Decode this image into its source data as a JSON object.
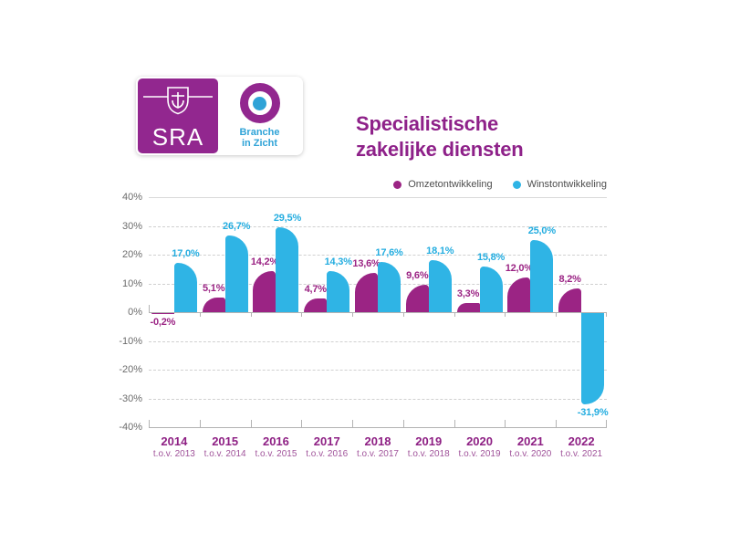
{
  "logo": {
    "sra_text": "SRA",
    "tagline_line1": "Branche",
    "tagline_line2": "in Zicht"
  },
  "title": {
    "line1": "Specialistische",
    "line2": "zakelijke diensten"
  },
  "legend": [
    {
      "label": "Omzetontwikkeling",
      "color": "#9B2484"
    },
    {
      "label": "Winstontwikkeling",
      "color": "#2FB4E5"
    }
  ],
  "colors": {
    "purple_bar": "#9B2484",
    "blue_bar": "#2FB4E5",
    "purple_label": "#9B2484",
    "blue_label": "#24ADE0"
  },
  "chart_data": {
    "type": "bar",
    "title": "Specialistische zakelijke diensten",
    "categories": [
      "2014",
      "2015",
      "2016",
      "2017",
      "2018",
      "2019",
      "2020",
      "2021",
      "2022"
    ],
    "subcategories": [
      "t.o.v. 2013",
      "t.o.v. 2014",
      "t.o.v. 2015",
      "t.o.v. 2016",
      "t.o.v. 2017",
      "t.o.v. 2018",
      "t.o.v. 2019",
      "t.o.v. 2020",
      "t.o.v. 2021"
    ],
    "series": [
      {
        "name": "Omzetontwikkeling",
        "color": "#9B2484",
        "values": [
          -0.2,
          5.1,
          14.2,
          4.7,
          13.6,
          9.6,
          3.3,
          12.0,
          8.2
        ],
        "labels": [
          "-0,2%",
          "5,1%",
          "14,2%",
          "4,7%",
          "13,6%",
          "9,6%",
          "3,3%",
          "12,0%",
          "8,2%"
        ]
      },
      {
        "name": "Winstontwikkeling",
        "color": "#2FB4E5",
        "values": [
          17.0,
          26.7,
          29.5,
          14.3,
          17.6,
          18.1,
          15.8,
          25.0,
          -31.9
        ],
        "labels": [
          "17,0%",
          "26,7%",
          "29,5%",
          "14,3%",
          "17,6%",
          "18,1%",
          "15,8%",
          "25,0%",
          "-31,9%"
        ]
      }
    ],
    "ylim": [
      -40,
      40
    ],
    "ytick_step": 10,
    "ytick_labels": [
      "40%",
      "30%",
      "20%",
      "10%",
      "0%",
      "-10%",
      "-20%",
      "-30%",
      "-40%"
    ],
    "grid": "dashed horizontal, solid zero and bottom axis with tick marks",
    "legend_position": "top-right"
  }
}
